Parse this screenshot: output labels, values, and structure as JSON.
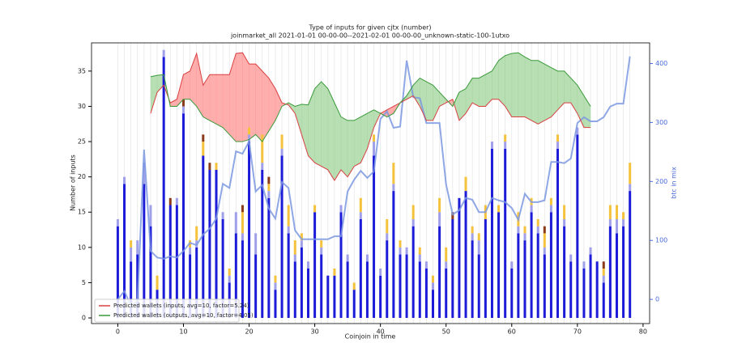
{
  "chart_data": {
    "type": "bar",
    "title": "Type of inputs for given cjtx (number)",
    "subtitle": "joinmarket_all 2021-01-01 00-00-00--2021-02-01 00-00-00_unknown-static-100-1utxo",
    "x_label": "Coinjoin in time",
    "y_label": "Number of inputs",
    "y2_label": "btc in mix",
    "x": [
      0,
      1,
      2,
      3,
      4,
      5,
      6,
      7,
      8,
      9,
      10,
      11,
      12,
      13,
      14,
      15,
      16,
      17,
      18,
      19,
      20,
      21,
      22,
      23,
      24,
      25,
      26,
      27,
      28,
      29,
      30,
      31,
      32,
      33,
      34,
      35,
      36,
      37,
      38,
      39,
      40,
      41,
      42,
      43,
      44,
      45,
      46,
      47,
      48,
      49,
      50,
      51,
      52,
      53,
      54,
      55,
      56,
      57,
      58,
      59,
      60,
      61,
      62,
      63,
      64,
      65,
      66,
      67,
      68,
      69,
      70,
      71,
      72,
      73,
      74,
      75,
      76,
      77,
      78
    ],
    "xlim": [
      -4,
      81
    ],
    "xticks": [
      0,
      10,
      20,
      30,
      40,
      50,
      60,
      70,
      80
    ],
    "ylim": [
      -0.8,
      39
    ],
    "yticks": [
      0,
      5,
      10,
      15,
      20,
      25,
      30,
      35
    ],
    "y2lim": [
      -41,
      435
    ],
    "y2ticks": [
      0,
      100,
      200,
      300,
      400
    ],
    "grid": true,
    "legend": "lower left",
    "series": [
      {
        "type": "bar",
        "color": "#1c1cd8",
        "values": [
          13,
          19,
          8,
          9,
          19,
          13,
          4,
          37,
          16,
          16,
          29,
          9,
          10,
          23,
          21,
          21,
          14,
          5,
          12,
          11,
          25,
          9,
          21,
          17,
          4,
          23,
          12,
          8,
          10,
          7,
          15,
          9,
          6,
          6,
          15,
          8,
          4,
          14,
          8,
          23,
          6,
          11,
          18,
          9,
          9,
          13,
          8,
          7,
          4,
          13,
          7,
          14,
          17,
          18,
          11,
          9,
          14,
          24,
          15,
          24,
          7,
          12,
          11,
          15,
          12,
          9,
          15,
          24,
          13,
          8,
          26,
          7,
          9,
          8,
          5,
          13,
          12,
          13,
          18
        ]
      },
      {
        "type": "bar",
        "color": "#a0a0ea",
        "values": [
          1,
          1,
          2,
          2,
          3,
          3,
          0,
          1,
          0,
          1,
          1,
          1,
          1,
          0,
          0,
          0,
          1,
          1,
          3,
          1,
          1,
          3,
          1,
          1,
          1,
          1,
          1,
          1,
          1,
          1,
          0,
          1,
          0,
          0,
          1,
          1,
          0,
          1,
          1,
          2,
          1,
          1,
          1,
          1,
          1,
          1,
          1,
          1,
          1,
          2,
          1,
          0,
          0,
          0,
          1,
          2,
          0,
          1,
          0,
          1,
          1,
          1,
          1,
          1,
          1,
          1,
          1,
          1,
          1,
          1,
          1,
          1,
          1,
          0,
          1,
          1,
          2,
          1,
          1
        ]
      },
      {
        "type": "bar",
        "color": "#f4c23c",
        "values": [
          0,
          0,
          1,
          0,
          0,
          0,
          2,
          0,
          0,
          0,
          0,
          1,
          2,
          2,
          0,
          1,
          0,
          1,
          0,
          3,
          1,
          0,
          4,
          1,
          1,
          2,
          3,
          2,
          1,
          0,
          1,
          1,
          0,
          1,
          0,
          0,
          1,
          2,
          0,
          1,
          0,
          2,
          3,
          1,
          0,
          2,
          1,
          0,
          1,
          2,
          2,
          0,
          0,
          2,
          1,
          1,
          2,
          0,
          1,
          1,
          0,
          2,
          1,
          1,
          1,
          2,
          1,
          1,
          2,
          0,
          0,
          0,
          0,
          0,
          1,
          2,
          2,
          1,
          3
        ]
      },
      {
        "type": "bar",
        "color": "#8b3a1a",
        "values": [
          0,
          0,
          0,
          0,
          0,
          0,
          0,
          0,
          1,
          0,
          1,
          0,
          0,
          1,
          1,
          0,
          0,
          0,
          0,
          1,
          0,
          0,
          0,
          1,
          0,
          0,
          0,
          0,
          0,
          0,
          0,
          0,
          0,
          0,
          0,
          0,
          0,
          0,
          0,
          0,
          0,
          0,
          0,
          0,
          0,
          0,
          0,
          0,
          0,
          0,
          0,
          1,
          0,
          0,
          0,
          0,
          0,
          0,
          0,
          0,
          0,
          0,
          0,
          0,
          0,
          1,
          0,
          0,
          0,
          0,
          0,
          0,
          0,
          0,
          1,
          0,
          0,
          0,
          0
        ]
      },
      {
        "type": "line",
        "axis": "y2",
        "color": "#7b98e0",
        "values": [
          0,
          14,
          -11,
          -3,
          254,
          82,
          71,
          69,
          73,
          71,
          82,
          96,
          92,
          110,
          120,
          137,
          196,
          189,
          251,
          247,
          268,
          183,
          194,
          154,
          137,
          199,
          189,
          117,
          102,
          102,
          102,
          102,
          102,
          107,
          107,
          183,
          203,
          218,
          206,
          217,
          306,
          319,
          291,
          293,
          405,
          343,
          341,
          299,
          299,
          299,
          195,
          144,
          151,
          172,
          169,
          148,
          148,
          172,
          168,
          165,
          155,
          135,
          179,
          165,
          165,
          168,
          233,
          233,
          231,
          239,
          299,
          309,
          302,
          302,
          309,
          327,
          332,
          332,
          412
        ]
      },
      {
        "type": "band",
        "name": "Predicted wallets (inputs, avg=10, factor=5.24)",
        "color": "#d94040",
        "fill": "#ff9a9a",
        "values": [
          null,
          null,
          null,
          null,
          null,
          29,
          32,
          33,
          30.5,
          31,
          34.5,
          35,
          37.5,
          33,
          34.5,
          34.5,
          34.5,
          34.5,
          37.5,
          37.6,
          36,
          36,
          35,
          34,
          32.5,
          30.5,
          30.2,
          29,
          26,
          23,
          22,
          21.5,
          21,
          19.5,
          21,
          20,
          21.5,
          22,
          24,
          27,
          29,
          29.5,
          30,
          30.5,
          31,
          31.5,
          30,
          28,
          28,
          30,
          30.5,
          31,
          28,
          29,
          30.5,
          30,
          30,
          31,
          31,
          30,
          28.5,
          28.5,
          28.5,
          28,
          27.5,
          28,
          28.5,
          29.5,
          30.5,
          30.5,
          29,
          27,
          27,
          null,
          null,
          null,
          null,
          null,
          null
        ]
      },
      {
        "type": "band",
        "name": "Predicted wallets (outputs, avg=10, factor=4.05)",
        "color": "#3a9a3a",
        "fill": "#a6d6a0",
        "values": [
          null,
          null,
          null,
          null,
          null,
          34.2,
          34.4,
          34.5,
          30,
          30,
          31,
          31,
          30,
          28.5,
          28,
          27.5,
          27,
          26,
          25,
          25,
          25.3,
          26,
          25,
          26.5,
          28,
          30,
          30.5,
          30,
          30.3,
          30.2,
          32.5,
          33.5,
          32.5,
          30.5,
          28.5,
          28,
          28,
          28.5,
          29,
          29.5,
          29,
          28.5,
          29,
          30.5,
          31.5,
          33,
          34,
          33.5,
          33,
          32,
          31,
          30,
          32,
          32.5,
          34,
          34,
          34.5,
          35,
          36.5,
          37.2,
          37.5,
          37.6,
          37,
          36.5,
          36.5,
          36,
          35.5,
          35,
          35,
          34,
          33,
          31.5,
          30,
          null,
          null,
          null,
          null,
          null,
          null
        ]
      }
    ]
  }
}
